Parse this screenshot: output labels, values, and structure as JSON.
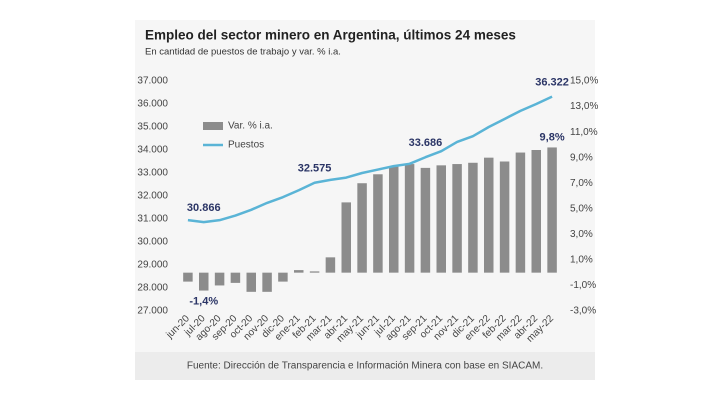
{
  "chart_data": {
    "type": "combo",
    "title": "Empleo del sector minero en Argentina, últimos 24 meses",
    "subtitle": "En cantidad de puestos de trabajo y var. % i.a.",
    "source": "Fuente: Dirección de Transparencia e Información Minera con base en SIACAM.",
    "categories": [
      "jun-20",
      "jul-20",
      "ago-20",
      "sep-20",
      "oct-20",
      "nov-20",
      "dic-20",
      "ene-21",
      "feb-21",
      "mar-21",
      "abr-21",
      "may-21",
      "jun-21",
      "jul-21",
      "ago-21",
      "sep-21",
      "oct-21",
      "nov-21",
      "dic-21",
      "ene-22",
      "feb-22",
      "mar-22",
      "abr-22",
      "may-22"
    ],
    "series": [
      {
        "name": "Var. % i.a.",
        "type": "bar",
        "axis": "y2",
        "color": "#8c8c8c",
        "values": [
          -0.7,
          -1.4,
          -1.0,
          -0.8,
          -1.5,
          -1.5,
          -0.7,
          0.2,
          0.1,
          1.2,
          5.5,
          7.0,
          7.7,
          8.3,
          8.5,
          8.2,
          8.4,
          8.5,
          8.6,
          9.0,
          8.7,
          9.4,
          9.6,
          9.8
        ],
        "value_labels": [
          null,
          "-1,4%",
          null,
          null,
          null,
          null,
          null,
          null,
          null,
          null,
          null,
          null,
          null,
          null,
          null,
          null,
          null,
          null,
          null,
          null,
          null,
          null,
          null,
          "9,8%"
        ]
      },
      {
        "name": "Puestos",
        "type": "line",
        "color": "#5ab4d6",
        "values": [
          30950,
          30866,
          30950,
          31150,
          31400,
          31700,
          31950,
          32250,
          32575,
          32700,
          32800,
          33000,
          33150,
          33300,
          33400,
          33686,
          33950,
          34350,
          34600,
          35000,
          35350,
          35700,
          36000,
          36322
        ],
        "value_labels": [
          null,
          "30.866",
          null,
          null,
          null,
          null,
          null,
          null,
          "32.575",
          null,
          null,
          null,
          null,
          null,
          null,
          "33.686",
          null,
          null,
          null,
          null,
          null,
          null,
          null,
          "36.322"
        ]
      }
    ],
    "ylim": [
      27000,
      37000
    ],
    "yticks": [
      {
        "value": 27000,
        "label": "27.000"
      },
      {
        "value": 28000,
        "label": "28.000"
      },
      {
        "value": 29000,
        "label": "29.000"
      },
      {
        "value": 30000,
        "label": "30.000"
      },
      {
        "value": 31000,
        "label": "31.000"
      },
      {
        "value": 32000,
        "label": "32.000"
      },
      {
        "value": 33000,
        "label": "33.000"
      },
      {
        "value": 34000,
        "label": "34.000"
      },
      {
        "value": 35000,
        "label": "35.000"
      },
      {
        "value": 36000,
        "label": "36.000"
      },
      {
        "value": 37000,
        "label": "37.000"
      }
    ],
    "y2lim": [
      -3,
      15
    ],
    "y2ticks": [
      {
        "value": -3,
        "label": "-3,0%"
      },
      {
        "value": -1,
        "label": "-1,0%"
      },
      {
        "value": 1,
        "label": "1,0%"
      },
      {
        "value": 3,
        "label": "3,0%"
      },
      {
        "value": 5,
        "label": "5,0%"
      },
      {
        "value": 7,
        "label": "7,0%"
      },
      {
        "value": 9,
        "label": "9,0%"
      },
      {
        "value": 11,
        "label": "11,0%"
      },
      {
        "value": 13,
        "label": "13,0%"
      },
      {
        "value": 15,
        "label": "15,0%"
      }
    ],
    "legend": "top-left",
    "grid": false
  }
}
